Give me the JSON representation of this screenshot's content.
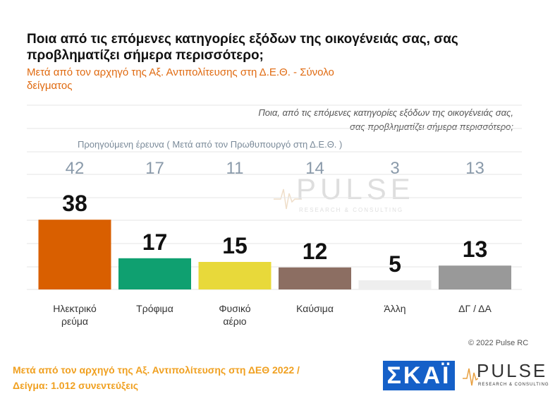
{
  "title": "Ποια από τις επόμενες κατηγορίες εξόδων της οικογένειάς σας, σας προβληματίζει σήμερα περισσότερο;",
  "subtitle": "Μετά από τον αρχηγό της Αξ. Αντιπολίτευσης στη Δ.Ε.Θ. - Σύνολο δείγματος",
  "inner_question_line1": "Ποια, από τις επόμενες κατηγορίες εξόδων της οικογένειάς σας,",
  "inner_question_line2": "σας προβληματίζει σήμερα περισσότερο;",
  "previous_survey_label": "Προηγούμενη έρευνα  (  Μετά από τον Πρωθυπουργό στη Δ.Ε.Θ. )",
  "watermark": {
    "brand": "PULSE",
    "tagline": "RESEARCH & CONSULTING"
  },
  "copyright": "© 2022 Pulse RC",
  "footer_line1": "Μετά από τον αρχηγό της Αξ. Αντιπολίτευσης στη ΔΕΘ  2022  /",
  "footer_line2": "Δείγμα:  1.012 συνεντεύξεις",
  "logos": {
    "skai": "ΣΚΑΪ",
    "pulse": "PULSE",
    "pulse_tagline": "RESEARCH & CONSULTING"
  },
  "colors": {
    "subtitle": "#e06a10",
    "footer": "#f0a020",
    "skai_bg": "#1560c8",
    "previous_values": "#8a9aaa",
    "grid": "#e6e6e6"
  },
  "chart_data": {
    "type": "bar",
    "title": "Ποια από τις επόμενες κατηγορίες εξόδων της οικογένειάς σας, σας προβληματίζει σήμερα περισσότερο;",
    "categories": [
      [
        "Ηλεκτρικό",
        "ρεύμα"
      ],
      [
        "Τρόφιμα"
      ],
      [
        "Φυσικό",
        "αέριο"
      ],
      [
        "Καύσιμα"
      ],
      [
        "Άλλη"
      ],
      [
        "ΔΓ / ΔΑ"
      ]
    ],
    "series": [
      {
        "name": "Μετά από τον αρχηγό της Αξ. Αντιπολίτευσης στη Δ.Ε.Θ.",
        "values": [
          38,
          17,
          15,
          12,
          5,
          13
        ]
      },
      {
        "name": "Προηγούμενη έρευνα",
        "values": [
          42,
          17,
          11,
          14,
          3,
          13
        ]
      }
    ],
    "bar_colors": [
      "#d95f00",
      "#0fa070",
      "#e8d93a",
      "#8c6e62",
      "#eeeeee",
      "#999999"
    ],
    "ylim": [
      0,
      45
    ],
    "grid": true,
    "xlabel": "",
    "ylabel": ""
  }
}
